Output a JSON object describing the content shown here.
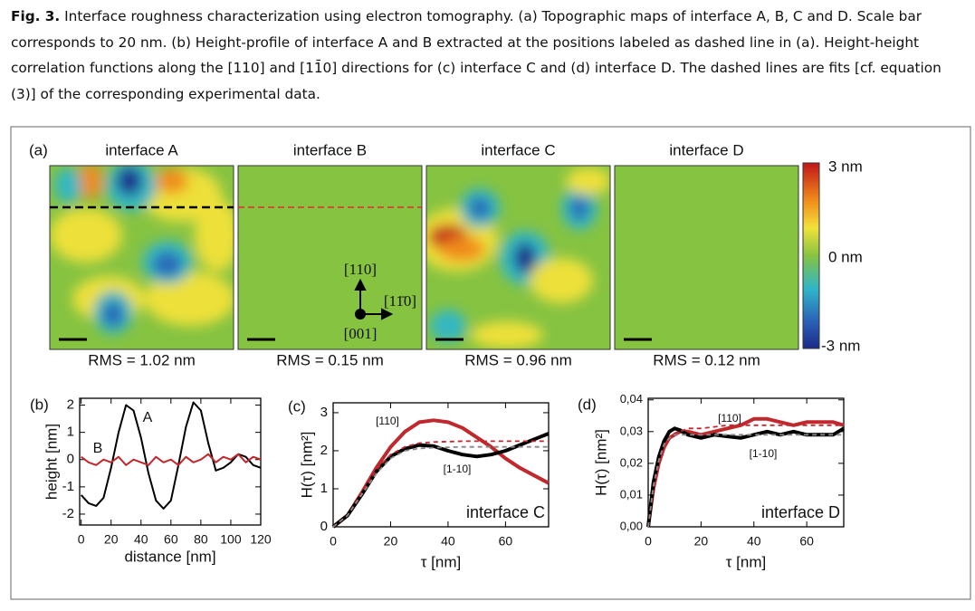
{
  "caption": {
    "label": "Fig. 3.",
    "text": "Interface roughness characterization using electron tomography. (a) Topographic maps of interface A, B, C and D. Scale bar corresponds to 20 nm. (b) Height-profile of interface A and B extracted at the positions labeled as dashed line in (a). Height-height correlation functions along the [110] and [11̄0] directions for (c) interface C and (d) interface D. The dashed lines are fits [cf. equation (3)] of the corresponding experimental data."
  },
  "panel_a": {
    "label": "(a)",
    "maps": [
      {
        "title": "interface A",
        "rms": "RMS = 1.02 nm"
      },
      {
        "title": "interface B",
        "rms": "RMS = 0.15 nm"
      },
      {
        "title": "interface C",
        "rms": "RMS = 0.96 nm"
      },
      {
        "title": "interface D",
        "rms": "RMS = 0.12 nm"
      }
    ],
    "directions": [
      "[110]",
      "[11̄0]",
      "[001]"
    ],
    "colorbar": [
      "3 nm",
      "0 nm",
      "-3 nm"
    ]
  },
  "chart_data": [
    {
      "type": "line",
      "label": "(b)",
      "xlabel": "distance [nm]",
      "ylabel": "height [nm]",
      "xlim": [
        -1,
        120
      ],
      "ylim": [
        -2.4,
        2.25
      ],
      "xticks": [
        0,
        20,
        40,
        60,
        80,
        100,
        120
      ],
      "yticks": [
        2,
        1,
        0,
        -1,
        -2
      ],
      "x": [
        0,
        5,
        10,
        15,
        20,
        25,
        30,
        35,
        40,
        45,
        50,
        55,
        60,
        65,
        70,
        75,
        80,
        85,
        90,
        95,
        100,
        105,
        110,
        115,
        120
      ],
      "series": [
        {
          "name": "A",
          "color": "#000000",
          "values": [
            -1.3,
            -1.6,
            -1.7,
            -1.4,
            -0.3,
            1.0,
            2.0,
            1.8,
            0.8,
            -0.5,
            -1.5,
            -1.8,
            -1.5,
            -0.2,
            1.2,
            2.1,
            1.8,
            0.6,
            -0.4,
            -0.3,
            -0.1,
            0.2,
            0.1,
            -0.2,
            -0.3
          ]
        },
        {
          "name": "B",
          "color": "#c0282d",
          "values": [
            0.1,
            -0.1,
            -0.2,
            0.0,
            -0.1,
            0.1,
            -0.2,
            0.0,
            -0.1,
            -0.2,
            0.1,
            -0.1,
            0.0,
            -0.2,
            0.1,
            -0.1,
            0.0,
            0.2,
            -0.1,
            0.1,
            0.0,
            0.2,
            -0.1,
            0.1,
            0.0
          ]
        }
      ]
    },
    {
      "type": "line",
      "label": "(c)",
      "xlabel": "τ [nm]",
      "ylabel": "H(τ) [nm²]",
      "annotation": "interface C",
      "xlim": [
        0,
        75
      ],
      "ylim": [
        0,
        3.26
      ],
      "xticks": [
        0,
        20,
        40,
        60
      ],
      "yticks": [
        0,
        1,
        2,
        3
      ],
      "x": [
        0,
        5,
        10,
        15,
        20,
        25,
        30,
        35,
        40,
        45,
        50,
        55,
        60,
        65,
        70,
        75
      ],
      "series": [
        {
          "name": "[110]",
          "color": "#c0282d",
          "values": [
            0,
            0.3,
            0.9,
            1.55,
            2.1,
            2.5,
            2.75,
            2.8,
            2.75,
            2.6,
            2.35,
            2.1,
            1.8,
            1.55,
            1.35,
            1.15
          ]
        },
        {
          "name": "[1-10]",
          "color": "#000000",
          "values": [
            0,
            0.3,
            0.85,
            1.45,
            1.85,
            2.05,
            2.15,
            2.12,
            2.0,
            1.9,
            1.85,
            1.9,
            2.0,
            2.15,
            2.3,
            2.45
          ]
        },
        {
          "color": "#c0282d",
          "dashed": true,
          "values": [
            0,
            0.3,
            0.9,
            1.5,
            1.9,
            2.1,
            2.2,
            2.23,
            2.24,
            2.25,
            2.25,
            2.25,
            2.25,
            2.25,
            2.25,
            2.25
          ]
        },
        {
          "color": "#888888",
          "dashed": true,
          "values": [
            0,
            0.3,
            0.85,
            1.4,
            1.8,
            2.0,
            2.06,
            2.08,
            2.09,
            2.1,
            2.1,
            2.1,
            2.1,
            2.1,
            2.1,
            2.1
          ]
        }
      ]
    },
    {
      "type": "line",
      "label": "(d)",
      "xlabel": "τ [nm]",
      "ylabel": "H(τ) [nm²]",
      "annotation": "interface D",
      "xlim": [
        0,
        74
      ],
      "ylim": [
        0,
        0.0405
      ],
      "xticks": [
        0,
        20,
        40,
        60
      ],
      "yticks": [
        {
          "value": 0,
          "label": "0,00"
        },
        {
          "value": 0.01,
          "label": "0,01"
        },
        {
          "value": 0.02,
          "label": "0,02"
        },
        {
          "value": 0.03,
          "label": "0,03"
        },
        {
          "value": 0.04,
          "label": "0,04"
        }
      ],
      "x": [
        0,
        2,
        4,
        6,
        8,
        10,
        12,
        15,
        20,
        25,
        30,
        35,
        40,
        45,
        50,
        55,
        60,
        65,
        70,
        74
      ],
      "series": [
        {
          "name": "[110]",
          "color": "#c0282d",
          "values": [
            0,
            0.012,
            0.02,
            0.025,
            0.028,
            0.029,
            0.03,
            0.03,
            0.029,
            0.03,
            0.031,
            0.032,
            0.034,
            0.034,
            0.033,
            0.032,
            0.033,
            0.033,
            0.033,
            0.032
          ]
        },
        {
          "name": "[1-10]",
          "color": "#000000",
          "values": [
            0,
            0.014,
            0.022,
            0.027,
            0.03,
            0.031,
            0.0305,
            0.029,
            0.028,
            0.029,
            0.0285,
            0.028,
            0.029,
            0.03,
            0.029,
            0.03,
            0.029,
            0.029,
            0.029,
            0.031
          ]
        },
        {
          "color": "#c0282d",
          "dashed": true,
          "values": [
            0,
            0.012,
            0.02,
            0.025,
            0.028,
            0.0295,
            0.03,
            0.031,
            0.031,
            0.0315,
            0.032,
            0.032,
            0.032,
            0.032,
            0.032,
            0.032,
            0.032,
            0.032,
            0.032,
            0.032
          ]
        },
        {
          "color": "#888888",
          "dashed": true,
          "values": [
            0,
            0.013,
            0.021,
            0.026,
            0.028,
            0.029,
            0.029,
            0.029,
            0.029,
            0.029,
            0.029,
            0.029,
            0.029,
            0.029,
            0.029,
            0.029,
            0.029,
            0.029,
            0.029,
            0.029
          ]
        }
      ]
    }
  ]
}
